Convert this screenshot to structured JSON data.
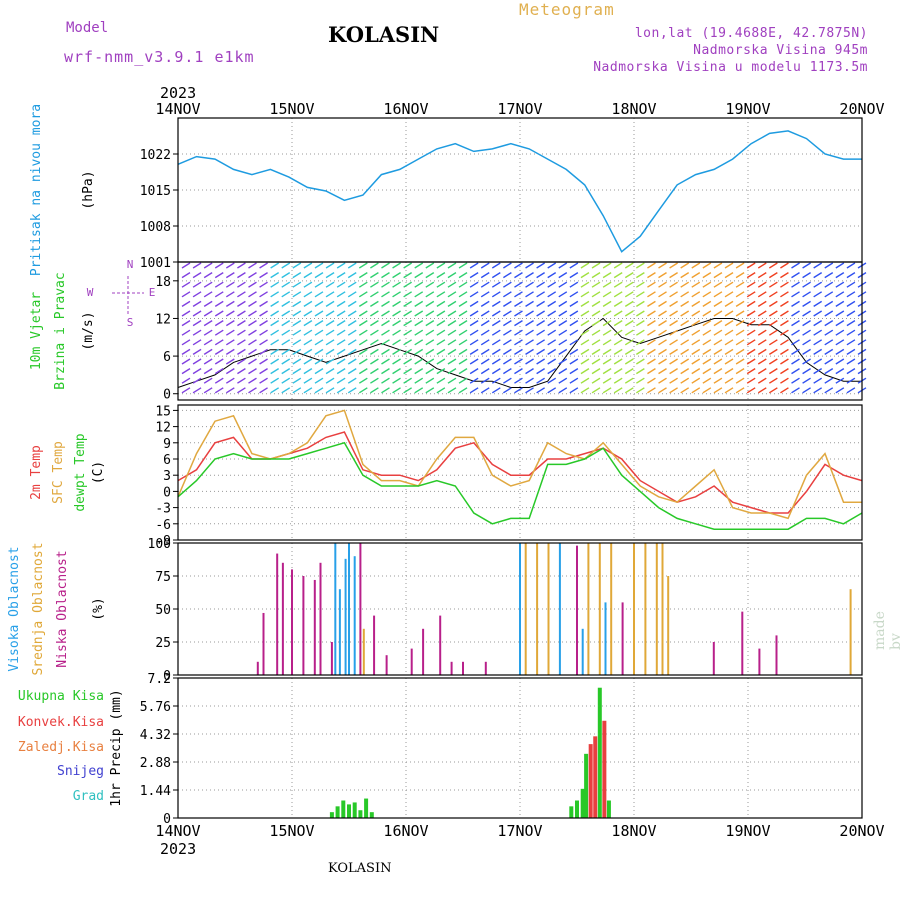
{
  "header": {
    "model_label": "Model",
    "model_name": "wrf-nmm_v3.9.1 e1km",
    "title": "KOLASIN",
    "meteogram": "Meteogram",
    "lonlat": "lon,lat (19.4688E, 42.7875N)",
    "altitude": "Nadmorska Visina 945m",
    "model_altitude": "Nadmorska Visina u modelu 1173.5m"
  },
  "footer": {
    "station": "KOLASIN",
    "year_top": "2023",
    "year_bottom": "2023",
    "credit": "made by Angel"
  },
  "colors": {
    "pressure": "#1e9be0",
    "t2m": "#e84040",
    "sfc": "#e0a840",
    "dew": "#28c828",
    "high": "#28a0e8",
    "mid": "#e0a838",
    "low": "#b8208a"
  },
  "chart_data": [
    {
      "type": "line",
      "x_ticks": [
        "14NOV",
        "15NOV",
        "16NOV",
        "17NOV",
        "18NOV",
        "19NOV",
        "20NOV"
      ],
      "ylabel": [
        "Pritisak na nivou mora",
        "(hPa)"
      ],
      "y_ticks": [
        "1001",
        "1008",
        "1015",
        "1022"
      ],
      "ylim": [
        1001,
        1029
      ],
      "series": [
        {
          "values": [
            1020,
            1021.5,
            1021,
            1019,
            1018,
            1019,
            1017.5,
            1015.5,
            1014.8,
            1013,
            1014,
            1018,
            1019,
            1021,
            1023,
            1024,
            1022.5,
            1023,
            1024,
            1023,
            1021,
            1019,
            1016,
            1010,
            1003,
            1006,
            1011,
            1016,
            1018,
            1019,
            1021,
            1024,
            1026,
            1026.5,
            1025,
            1022,
            1021,
            1021
          ]
        }
      ]
    },
    {
      "type": "line",
      "ylabel": [
        "10m Vjetar",
        "Brzina i Pravac",
        "(m/s)"
      ],
      "legend_compass": [
        "N",
        "E",
        "S",
        "W"
      ],
      "y_ticks": [
        "0",
        "6",
        "12",
        "18"
      ],
      "ylim": [
        -1,
        21
      ],
      "series": [
        {
          "values": [
            1,
            2,
            3,
            5,
            6,
            7,
            7,
            6,
            5,
            6,
            7,
            8,
            7,
            6,
            4,
            3,
            2,
            2,
            1,
            1,
            2,
            6,
            10,
            12,
            9,
            8,
            9,
            10,
            11,
            12,
            12,
            11,
            11,
            9,
            5,
            3,
            2,
            2
          ]
        }
      ]
    },
    {
      "type": "line",
      "ylabel": [
        "2m Temp",
        "SFC Temp",
        "dewpt Temp",
        "(C)"
      ],
      "y_ticks": [
        "-9",
        "-6",
        "-3",
        "0",
        "3",
        "6",
        "9",
        "12",
        "15"
      ],
      "ylim": [
        -9,
        16
      ],
      "series": [
        {
          "values": [
            2,
            4,
            9,
            10,
            6,
            6,
            7,
            8,
            10,
            11,
            4,
            3,
            3,
            2,
            4,
            8,
            9,
            5,
            3,
            3,
            6,
            6,
            7,
            8,
            6,
            2,
            0,
            -2,
            -1,
            1,
            -2,
            -3,
            -4,
            -4,
            0,
            5,
            3,
            2
          ]
        },
        {
          "values": [
            -1,
            7,
            13,
            14,
            7,
            6,
            7,
            9,
            14,
            15,
            5,
            2,
            2,
            1,
            6,
            10,
            10,
            3,
            1,
            2,
            9,
            7,
            6,
            9,
            5,
            1,
            -1,
            -2,
            1,
            4,
            -3,
            -4,
            -4,
            -5,
            3,
            7,
            -2,
            -2
          ]
        },
        {
          "values": [
            -1,
            2,
            6,
            7,
            6,
            6,
            6,
            7,
            8,
            9,
            3,
            1,
            1,
            1,
            2,
            1,
            -4,
            -6,
            -5,
            -5,
            5,
            5,
            6,
            8,
            3,
            0,
            -3,
            -5,
            -6,
            -7,
            -7,
            -7,
            -7,
            -7,
            -5,
            -5,
            -6,
            -4
          ]
        }
      ]
    },
    {
      "type": "bar",
      "ylabel": [
        "Visoka Oblacnost",
        "Srednja Oblacnost",
        "Niska Oblacnost",
        "(%)"
      ],
      "y_ticks": [
        "0",
        "25",
        "50",
        "75",
        "100"
      ],
      "ylim": [
        0,
        100
      ],
      "bars": [
        [
          0.7,
          10,
          "low"
        ],
        [
          0.75,
          47,
          "low"
        ],
        [
          0.87,
          92,
          "low"
        ],
        [
          0.92,
          85,
          "low"
        ],
        [
          1.0,
          80,
          "low"
        ],
        [
          1.1,
          75,
          "low"
        ],
        [
          1.2,
          72,
          "low"
        ],
        [
          1.25,
          85,
          "low"
        ],
        [
          1.35,
          25,
          "low"
        ],
        [
          1.38,
          100,
          "high"
        ],
        [
          1.42,
          65,
          "high"
        ],
        [
          1.47,
          88,
          "high"
        ],
        [
          1.5,
          100,
          "high"
        ],
        [
          1.55,
          90,
          "high"
        ],
        [
          1.6,
          100,
          "low"
        ],
        [
          1.63,
          35,
          "mid"
        ],
        [
          1.72,
          45,
          "low"
        ],
        [
          1.83,
          15,
          "low"
        ],
        [
          2.05,
          20,
          "low"
        ],
        [
          2.15,
          35,
          "low"
        ],
        [
          2.3,
          45,
          "low"
        ],
        [
          2.4,
          10,
          "low"
        ],
        [
          2.5,
          10,
          "low"
        ],
        [
          2.7,
          10,
          "low"
        ],
        [
          3.0,
          100,
          "high"
        ],
        [
          3.05,
          100,
          "mid"
        ],
        [
          3.15,
          100,
          "mid"
        ],
        [
          3.25,
          100,
          "mid"
        ],
        [
          3.35,
          100,
          "high"
        ],
        [
          3.5,
          98,
          "low"
        ],
        [
          3.55,
          35,
          "high"
        ],
        [
          3.6,
          100,
          "mid"
        ],
        [
          3.7,
          100,
          "mid"
        ],
        [
          3.75,
          55,
          "high"
        ],
        [
          3.8,
          100,
          "mid"
        ],
        [
          3.9,
          55,
          "low"
        ],
        [
          4.0,
          100,
          "mid"
        ],
        [
          4.1,
          100,
          "mid"
        ],
        [
          4.2,
          100,
          "mid"
        ],
        [
          4.25,
          100,
          "mid"
        ],
        [
          4.3,
          75,
          "mid"
        ],
        [
          4.7,
          25,
          "low"
        ],
        [
          4.95,
          48,
          "low"
        ],
        [
          5.1,
          20,
          "low"
        ],
        [
          5.25,
          30,
          "low"
        ],
        [
          5.9,
          65,
          "mid"
        ]
      ]
    },
    {
      "type": "bar",
      "ylabel": [
        "Ukupna Kisa",
        "Konvek.Kisa",
        "Zaledj.Kisa",
        "Snijeg",
        "Grad",
        "1hr Precip (mm)"
      ],
      "y_ticks": [
        "0",
        "1.44",
        "2.88",
        "4.32",
        "5.76",
        "7.2"
      ],
      "ylim": [
        0,
        7.2
      ],
      "bars": [
        [
          1.35,
          0.3,
          "dew"
        ],
        [
          1.4,
          0.6,
          "dew"
        ],
        [
          1.45,
          0.9,
          "dew"
        ],
        [
          1.5,
          0.7,
          "dew"
        ],
        [
          1.55,
          0.8,
          "dew"
        ],
        [
          1.6,
          0.4,
          "dew"
        ],
        [
          1.65,
          1.0,
          "dew"
        ],
        [
          1.7,
          0.3,
          "dew"
        ],
        [
          3.45,
          0.6,
          "dew"
        ],
        [
          3.5,
          0.9,
          "dew"
        ],
        [
          3.55,
          1.5,
          "dew"
        ],
        [
          3.58,
          3.3,
          "dew"
        ],
        [
          3.62,
          3.8,
          "t2m"
        ],
        [
          3.66,
          4.2,
          "t2m"
        ],
        [
          3.7,
          6.7,
          "dew"
        ],
        [
          3.74,
          5.0,
          "t2m"
        ],
        [
          3.78,
          0.9,
          "dew"
        ]
      ]
    }
  ]
}
